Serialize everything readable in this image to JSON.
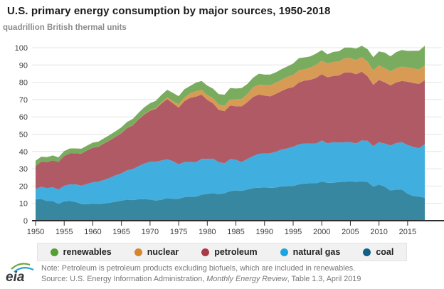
{
  "header": {
    "title": "U.S. primary energy consumption by major sources, 1950-2018",
    "units_label": "quadrillion British thermal units"
  },
  "legend": {
    "items": [
      {
        "label": "renewables",
        "color": "#559e32"
      },
      {
        "label": "nuclear",
        "color": "#d6872b"
      },
      {
        "label": "petroleum",
        "color": "#a93b49"
      },
      {
        "label": "natural gas",
        "color": "#1ba6e2"
      },
      {
        "label": "coal",
        "color": "#0f6189"
      }
    ]
  },
  "footer": {
    "logo_text": "eia",
    "note": "Note: Petroleum is petroleum products excluding biofuels, which are included in renewables.",
    "source_prefix": "Source: U.S. Energy Information Administration, ",
    "source_italic": "Monthly Energy Review",
    "source_suffix": ", Table 1.3, April 2019"
  },
  "chart_data": {
    "type": "area",
    "stacked": true,
    "title": "U.S. primary energy consumption by major sources, 1950-2018",
    "ylabel": "quadrillion British thermal units",
    "xlim": [
      1950,
      2018
    ],
    "ylim": [
      0,
      100
    ],
    "yticks": [
      0,
      10,
      20,
      30,
      40,
      50,
      60,
      70,
      80,
      90,
      100
    ],
    "xticks": [
      1950,
      1955,
      1960,
      1965,
      1970,
      1975,
      1980,
      1985,
      1990,
      1995,
      2000,
      2005,
      2010,
      2015
    ],
    "grid": true,
    "legend_position": "bottom",
    "x": [
      1950,
      1951,
      1952,
      1953,
      1954,
      1955,
      1956,
      1957,
      1958,
      1959,
      1960,
      1961,
      1962,
      1963,
      1964,
      1965,
      1966,
      1967,
      1968,
      1969,
      1970,
      1971,
      1972,
      1973,
      1974,
      1975,
      1976,
      1977,
      1978,
      1979,
      1980,
      1981,
      1982,
      1983,
      1984,
      1985,
      1986,
      1987,
      1988,
      1989,
      1990,
      1991,
      1992,
      1993,
      1994,
      1995,
      1996,
      1997,
      1998,
      1999,
      2000,
      2001,
      2002,
      2003,
      2004,
      2005,
      2006,
      2007,
      2008,
      2009,
      2010,
      2011,
      2012,
      2013,
      2014,
      2015,
      2016,
      2017,
      2018
    ],
    "series": [
      {
        "name": "coal",
        "fill": "#36879f",
        "values": [
          12.35,
          12.55,
          11.31,
          11.37,
          9.72,
          11.17,
          11.35,
          10.82,
          9.53,
          9.52,
          9.84,
          9.62,
          9.91,
          10.41,
          10.96,
          11.58,
          12.14,
          11.91,
          12.33,
          12.38,
          12.26,
          11.6,
          12.08,
          12.97,
          12.66,
          12.66,
          13.58,
          13.92,
          13.77,
          15.04,
          15.42,
          15.91,
          15.32,
          15.89,
          17.07,
          17.48,
          17.26,
          18.01,
          18.85,
          19.07,
          19.17,
          18.99,
          19.12,
          19.83,
          19.91,
          20.09,
          21.0,
          21.45,
          21.66,
          21.62,
          22.58,
          21.91,
          21.9,
          22.32,
          22.47,
          22.8,
          22.45,
          22.75,
          22.39,
          19.69,
          20.83,
          19.66,
          17.38,
          18.04,
          17.99,
          15.55,
          14.23,
          13.87,
          13.25
        ]
      },
      {
        "name": "natural gas",
        "fill": "#41aee0",
        "values": [
          5.97,
          7.05,
          7.55,
          7.91,
          8.33,
          9.0,
          9.61,
          10.19,
          10.66,
          11.72,
          12.39,
          12.93,
          13.73,
          14.4,
          15.29,
          15.77,
          17.0,
          17.94,
          19.21,
          20.68,
          21.8,
          22.47,
          22.7,
          22.51,
          21.73,
          19.95,
          20.35,
          19.93,
          20.0,
          20.67,
          20.24,
          19.93,
          18.51,
          17.36,
          18.51,
          17.7,
          16.59,
          17.64,
          18.45,
          19.6,
          19.6,
          20.03,
          20.71,
          21.35,
          21.84,
          22.67,
          23.09,
          23.22,
          22.83,
          22.91,
          23.82,
          22.77,
          23.51,
          22.83,
          22.93,
          22.56,
          22.24,
          23.66,
          23.84,
          23.42,
          24.57,
          24.95,
          26.09,
          26.8,
          27.39,
          28.19,
          28.4,
          28.03,
          30.96
        ]
      },
      {
        "name": "petroleum",
        "fill": "#b05a66",
        "values": [
          13.31,
          14.43,
          14.96,
          15.56,
          15.84,
          17.25,
          17.94,
          17.93,
          18.53,
          19.32,
          19.92,
          20.22,
          21.05,
          21.7,
          22.3,
          23.24,
          24.4,
          25.28,
          26.98,
          28.34,
          29.52,
          30.56,
          32.95,
          34.84,
          33.45,
          32.73,
          35.17,
          37.12,
          37.97,
          37.12,
          34.2,
          31.93,
          30.23,
          30.05,
          31.05,
          30.92,
          32.2,
          32.87,
          34.22,
          34.21,
          33.55,
          32.85,
          33.53,
          33.84,
          34.67,
          34.44,
          35.76,
          36.27,
          36.93,
          37.96,
          38.26,
          38.19,
          38.22,
          38.81,
          40.29,
          40.39,
          39.96,
          39.77,
          37.28,
          35.4,
          35.97,
          35.33,
          34.73,
          35.11,
          35.36,
          36.57,
          36.96,
          37.14,
          36.95
        ]
      },
      {
        "name": "nuclear",
        "fill": "#d89b56",
        "values": [
          0,
          0,
          0,
          0,
          0,
          0,
          0,
          0,
          0,
          0,
          0.01,
          0.02,
          0.03,
          0.04,
          0.04,
          0.04,
          0.06,
          0.09,
          0.14,
          0.15,
          0.24,
          0.41,
          0.58,
          0.91,
          1.27,
          1.9,
          2.11,
          2.7,
          3.02,
          2.78,
          2.74,
          3.01,
          3.13,
          3.2,
          3.55,
          4.08,
          4.38,
          4.75,
          5.59,
          5.6,
          6.1,
          6.42,
          6.48,
          6.41,
          6.69,
          7.08,
          7.09,
          6.6,
          7.07,
          7.61,
          7.86,
          8.03,
          8.14,
          7.96,
          8.22,
          8.16,
          8.21,
          8.46,
          8.43,
          8.36,
          8.43,
          8.27,
          8.06,
          8.24,
          8.34,
          8.34,
          8.42,
          8.42,
          8.44
        ]
      },
      {
        "name": "renewables",
        "fill": "#79ac5f",
        "values": [
          2.98,
          2.95,
          2.94,
          2.85,
          2.75,
          2.78,
          2.88,
          2.85,
          2.88,
          2.85,
          2.93,
          2.92,
          3.02,
          3.06,
          3.19,
          3.4,
          3.46,
          3.65,
          3.73,
          3.96,
          4.07,
          4.27,
          4.39,
          4.43,
          4.76,
          4.72,
          4.77,
          4.25,
          5.04,
          5.17,
          5.49,
          5.56,
          5.94,
          6.32,
          6.52,
          6.19,
          6.29,
          5.76,
          5.56,
          6.46,
          6.04,
          6.2,
          5.98,
          6.21,
          6.1,
          6.56,
          7.01,
          6.86,
          6.51,
          6.51,
          6.1,
          5.24,
          5.79,
          6.03,
          6.15,
          6.23,
          6.65,
          6.51,
          7.19,
          7.62,
          8.06,
          8.96,
          8.76,
          9.22,
          9.56,
          9.49,
          10.16,
          10.78,
          11.52
        ]
      }
    ]
  }
}
